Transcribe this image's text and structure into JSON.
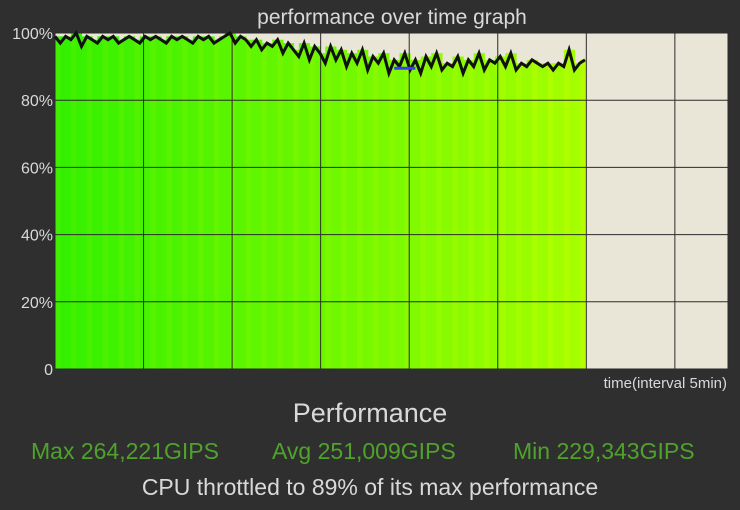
{
  "chart_data": {
    "type": "area",
    "title": "performance over time graph",
    "xlabel": "time(interval 5min)",
    "ylabel": "",
    "ylim": [
      0,
      100
    ],
    "y_ticks": [
      "0",
      "20%",
      "40%",
      "60%",
      "80%",
      "100%"
    ],
    "x_ticks_count": 7,
    "x_range": [
      0,
      30
    ],
    "grid": true,
    "series": [
      {
        "x": [
          0,
          0.3,
          0.6,
          0.9,
          1.2,
          1.5,
          1.8,
          2.1,
          2.4,
          2.7,
          3.0,
          3.3,
          3.6,
          3.9,
          4.2,
          4.5,
          4.8,
          5.1,
          5.4,
          5.7,
          6.0,
          6.3,
          6.6,
          6.9,
          7.2,
          7.5,
          7.8,
          8.1,
          8.4,
          8.7,
          9.0,
          9.3,
          9.6,
          9.9,
          10.2,
          10.5,
          10.8,
          11.1,
          11.4,
          11.7,
          12.0,
          12.3,
          12.6,
          12.9,
          13.2,
          13.5,
          13.8,
          14.1,
          14.4,
          14.7,
          15.0,
          15.3,
          15.6,
          15.9,
          16.2,
          16.5,
          16.8,
          17.1,
          17.4,
          17.7,
          18.0,
          18.3,
          18.6,
          18.9,
          19.2,
          19.5,
          19.8,
          20.1,
          20.4,
          20.7,
          21.0,
          21.3,
          21.6,
          21.9,
          22.2,
          22.5,
          22.8,
          23.1,
          23.4,
          23.7,
          24.0,
          24.3,
          24.6,
          24.9,
          25.2,
          25.5,
          25.8,
          26.1,
          26.4,
          26.7,
          27.0,
          27.3,
          27.6,
          27.9,
          28.2,
          28.5,
          28.8,
          29.1,
          29.4,
          29.7,
          30.0
        ],
        "y": [
          99,
          97,
          99,
          98,
          100,
          96,
          99,
          98,
          97,
          99,
          98,
          99,
          97,
          98,
          99,
          98,
          97,
          99,
          98,
          99,
          98,
          97,
          99,
          98,
          99,
          98,
          97,
          99,
          98,
          99,
          97,
          98,
          99,
          100,
          97,
          99,
          98,
          96,
          98,
          95,
          97,
          96,
          98,
          94,
          97,
          95,
          93,
          97,
          92,
          96,
          94,
          91,
          96,
          92,
          95,
          90,
          94,
          91,
          95,
          89,
          93,
          91,
          94,
          88,
          92,
          90,
          94,
          89,
          92,
          88,
          93,
          90,
          94,
          89,
          91,
          90,
          93,
          88,
          92,
          90,
          94,
          89,
          92,
          91,
          93,
          90,
          94,
          89,
          91,
          90,
          92,
          91,
          90,
          91,
          89,
          91,
          90,
          95,
          89,
          91,
          92
        ]
      }
    ],
    "highlight": {
      "x": [
        19.2,
        20.4
      ],
      "y": 89.5,
      "color": "#3b3bff"
    },
    "colors": {
      "background": "#2f2f2f",
      "plot_bg": "#e9e6d8",
      "fill_green_dark": "#33f000",
      "fill_green_light": "#a6ff00",
      "line": "#111111",
      "grid": "#2b2b2b",
      "stats": "#4fa32b"
    }
  },
  "summary": {
    "title": "Performance",
    "max": "Max 264,221GIPS",
    "avg": "Avg 251,009GIPS",
    "min": "Min 229,343GIPS",
    "throttle": "CPU throttled to 89% of its max performance"
  }
}
